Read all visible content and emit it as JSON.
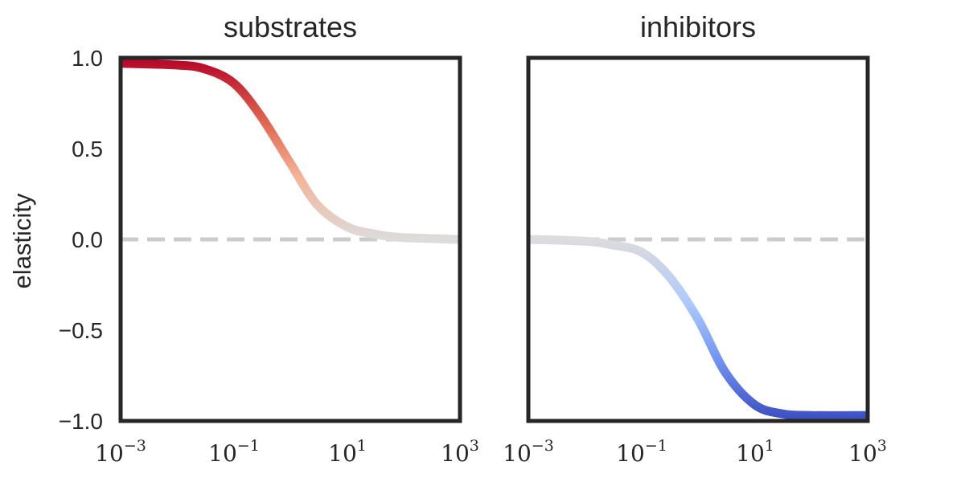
{
  "chart_data": [
    {
      "type": "line",
      "title": "substrates",
      "ylabel": "elasticity",
      "xscale": "log",
      "xlim": [
        0.001,
        1000
      ],
      "ylim": [
        -1.0,
        1.0
      ],
      "yticks": [
        "1.0",
        "0.5",
        "0.0",
        "−0.5",
        "−1.0"
      ],
      "xticks": [
        {
          "base": "10",
          "exp": "−3"
        },
        {
          "base": "10",
          "exp": "−1"
        },
        {
          "base": "10",
          "exp": "1"
        },
        {
          "base": "10",
          "exp": "3"
        }
      ],
      "series": [
        {
          "colormap": "coolwarm",
          "x": [
            0.001,
            0.01,
            0.03,
            0.1,
            0.3,
            1,
            3,
            10,
            30,
            100,
            1000
          ],
          "y": [
            0.97,
            0.96,
            0.94,
            0.86,
            0.68,
            0.42,
            0.19,
            0.07,
            0.03,
            0.01,
            0.0
          ]
        }
      ],
      "reference_line": {
        "y": 0.0,
        "style": "dashed",
        "color": "#cccccc"
      },
      "grid": false
    },
    {
      "type": "line",
      "title": "inhibitors",
      "xscale": "log",
      "xlim": [
        0.001,
        1000
      ],
      "ylim": [
        -1.0,
        1.0
      ],
      "xticks": [
        {
          "base": "10",
          "exp": "−3"
        },
        {
          "base": "10",
          "exp": "−1"
        },
        {
          "base": "10",
          "exp": "1"
        },
        {
          "base": "10",
          "exp": "3"
        }
      ],
      "series": [
        {
          "colormap": "coolwarm",
          "x": [
            0.001,
            0.01,
            0.03,
            0.1,
            0.3,
            1,
            3,
            10,
            30,
            100,
            1000
          ],
          "y": [
            0.0,
            -0.01,
            -0.03,
            -0.07,
            -0.2,
            -0.44,
            -0.73,
            -0.91,
            -0.96,
            -0.97,
            -0.97
          ]
        }
      ],
      "reference_line": {
        "y": 0.0,
        "style": "dashed",
        "color": "#cccccc"
      },
      "grid": false
    }
  ]
}
